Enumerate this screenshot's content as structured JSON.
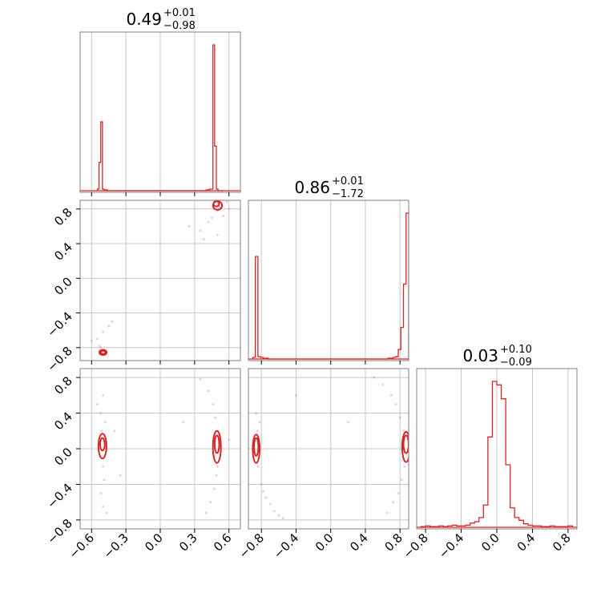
{
  "chart_data": {
    "type": "corner",
    "color": "#d62728",
    "params": [
      {
        "title": {
          "value": "0.49",
          "plus": "+0.01",
          "minus": "−0.98"
        },
        "range": [
          -0.7,
          0.7
        ],
        "ticks": [
          -0.6,
          -0.3,
          0.0,
          0.3,
          0.6
        ],
        "tick_labels": [
          "−0.6",
          "−0.3",
          "0.0",
          "0.3",
          "0.6"
        ],
        "hist": {
          "edges": [
            -0.55,
            -0.535,
            -0.52,
            -0.505,
            -0.49,
            -0.475,
            -0.46,
            -0.445,
            -0.43,
            -0.415,
            -0.4,
            0.4,
            0.415,
            0.43,
            0.445,
            0.46,
            0.475,
            0.49,
            0.505,
            0.52,
            0.535,
            0.55
          ],
          "counts": [
            2,
            35,
            85,
            2,
            1,
            1,
            0,
            0,
            0,
            0,
            0,
            1,
            1,
            2,
            2,
            180,
            55,
            2,
            0,
            0,
            0
          ]
        }
      },
      {
        "title": {
          "value": "0.86",
          "plus": "+0.01",
          "minus": "−1.72"
        },
        "range": [
          -0.95,
          0.9
        ],
        "ticks": [
          -0.8,
          -0.4,
          0.0,
          0.4,
          0.8
        ],
        "tick_labels": [
          "−0.8",
          "−0.4",
          "0.0",
          "0.4",
          "0.8"
        ],
        "hist": {
          "edges": [
            -0.9,
            -0.87,
            -0.84,
            -0.81,
            -0.78,
            -0.75,
            -0.72,
            -0.69,
            -0.66,
            0.66,
            0.69,
            0.72,
            0.75,
            0.78,
            0.81,
            0.84,
            0.87,
            0.9
          ],
          "counts": [
            2,
            130,
            3,
            2,
            1,
            1,
            0,
            0,
            0,
            1,
            1,
            2,
            3,
            12,
            40,
            95,
            185
          ]
        }
      },
      {
        "title": {
          "value": "0.03",
          "plus": "+0.10",
          "minus": "−0.09"
        },
        "range": [
          -0.9,
          0.9
        ],
        "ticks": [
          -0.8,
          -0.4,
          0.0,
          0.4,
          0.8
        ],
        "tick_labels": [
          "−0.8",
          "−0.4",
          "0.0",
          "0.4",
          "0.8"
        ],
        "hist": {
          "edges": [
            -0.85,
            -0.8,
            -0.75,
            -0.7,
            -0.65,
            -0.6,
            -0.55,
            -0.5,
            -0.45,
            -0.4,
            -0.35,
            -0.3,
            -0.25,
            -0.2,
            -0.15,
            -0.1,
            -0.05,
            0.0,
            0.05,
            0.1,
            0.15,
            0.2,
            0.25,
            0.3,
            0.35,
            0.4,
            0.45,
            0.5,
            0.55,
            0.6,
            0.65,
            0.7,
            0.75,
            0.8,
            0.85
          ],
          "counts": [
            1,
            2,
            1,
            1,
            2,
            1,
            2,
            3,
            2,
            2,
            3,
            6,
            8,
            14,
            32,
            130,
            210,
            205,
            185,
            90,
            28,
            14,
            10,
            5,
            3,
            2,
            2,
            1,
            1,
            2,
            1,
            1,
            1,
            2
          ]
        }
      }
    ],
    "panels_2d": [
      {
        "x": 0,
        "y": 1,
        "points": [
          [
            -0.5,
            -0.83
          ],
          [
            -0.51,
            -0.86
          ],
          [
            -0.49,
            -0.84
          ],
          [
            -0.52,
            -0.8
          ],
          [
            -0.48,
            -0.88
          ],
          [
            -0.55,
            -0.7
          ],
          [
            -0.45,
            -0.55
          ],
          [
            -0.5,
            -0.62
          ],
          [
            -0.6,
            -0.72
          ],
          [
            -0.42,
            -0.5
          ],
          [
            -0.53,
            -0.78
          ],
          [
            0.5,
            0.86
          ],
          [
            0.48,
            0.88
          ],
          [
            0.52,
            0.82
          ],
          [
            0.5,
            0.78
          ],
          [
            0.55,
            0.72
          ],
          [
            0.42,
            0.65
          ],
          [
            0.45,
            0.7
          ],
          [
            0.35,
            0.55
          ],
          [
            0.25,
            0.6
          ],
          [
            0.58,
            0.88
          ],
          [
            0.5,
            0.5
          ],
          [
            0.38,
            0.45
          ],
          [
            0.6,
            0.8
          ]
        ],
        "contours": [
          {
            "cx": -0.5,
            "cy": -0.855,
            "rx": 0.02,
            "ry": 0.02
          },
          {
            "cx": -0.5,
            "cy": -0.855,
            "rx": 0.032,
            "ry": 0.03
          },
          {
            "cx": 0.49,
            "cy": 0.86,
            "rx": 0.025,
            "ry": 0.03
          },
          {
            "cx": 0.5,
            "cy": 0.84,
            "rx": 0.04,
            "ry": 0.05
          }
        ]
      },
      {
        "x": 0,
        "y": 2,
        "points": [
          [
            -0.5,
            0.6
          ],
          [
            -0.52,
            0.4
          ],
          [
            -0.48,
            0.3
          ],
          [
            -0.51,
            0.2
          ],
          [
            -0.5,
            -0.2
          ],
          [
            -0.49,
            -0.35
          ],
          [
            -0.52,
            -0.5
          ],
          [
            -0.5,
            -0.65
          ],
          [
            -0.47,
            -0.72
          ],
          [
            -0.55,
            0.5
          ],
          [
            -0.35,
            -0.3
          ],
          [
            -0.4,
            0.2
          ],
          [
            0.35,
            0.78
          ],
          [
            0.42,
            0.65
          ],
          [
            0.46,
            0.5
          ],
          [
            0.48,
            0.35
          ],
          [
            0.5,
            0.2
          ],
          [
            0.49,
            -0.3
          ],
          [
            0.47,
            -0.45
          ],
          [
            0.44,
            -0.6
          ],
          [
            0.4,
            -0.72
          ],
          [
            0.5,
            -0.2
          ],
          [
            0.6,
            0.1
          ],
          [
            0.2,
            0.3
          ]
        ],
        "contours": [
          {
            "cx": -0.505,
            "cy": 0.05,
            "rx": 0.02,
            "ry": 0.07
          },
          {
            "cx": -0.505,
            "cy": 0.03,
            "rx": 0.035,
            "ry": 0.14
          },
          {
            "cx": 0.495,
            "cy": 0.05,
            "rx": 0.02,
            "ry": 0.1
          },
          {
            "cx": 0.495,
            "cy": 0.02,
            "rx": 0.035,
            "ry": 0.18
          }
        ]
      },
      {
        "x": 1,
        "y": 2,
        "points": [
          [
            -0.86,
            0.4
          ],
          [
            -0.85,
            0.2
          ],
          [
            -0.84,
            -0.2
          ],
          [
            -0.8,
            -0.4
          ],
          [
            -0.75,
            -0.55
          ],
          [
            -0.7,
            -0.62
          ],
          [
            -0.65,
            -0.7
          ],
          [
            -0.6,
            -0.75
          ],
          [
            -0.55,
            -0.78
          ],
          [
            -0.82,
            0.3
          ],
          [
            -0.78,
            -0.48
          ],
          [
            0.5,
            0.8
          ],
          [
            0.6,
            0.72
          ],
          [
            0.7,
            0.6
          ],
          [
            0.75,
            0.5
          ],
          [
            0.8,
            0.35
          ],
          [
            0.84,
            0.2
          ],
          [
            0.85,
            -0.2
          ],
          [
            0.82,
            -0.35
          ],
          [
            0.78,
            -0.5
          ],
          [
            0.72,
            -0.6
          ],
          [
            0.65,
            -0.72
          ],
          [
            -0.4,
            0.6
          ],
          [
            0.2,
            0.3
          ]
        ],
        "contours": [
          {
            "cx": -0.86,
            "cy": 0.02,
            "rx": 0.025,
            "ry": 0.1
          },
          {
            "cx": -0.86,
            "cy": 0.0,
            "rx": 0.04,
            "ry": 0.16
          },
          {
            "cx": 0.87,
            "cy": 0.05,
            "rx": 0.03,
            "ry": 0.1
          },
          {
            "cx": 0.87,
            "cy": 0.02,
            "rx": 0.045,
            "ry": 0.17
          }
        ]
      }
    ]
  }
}
